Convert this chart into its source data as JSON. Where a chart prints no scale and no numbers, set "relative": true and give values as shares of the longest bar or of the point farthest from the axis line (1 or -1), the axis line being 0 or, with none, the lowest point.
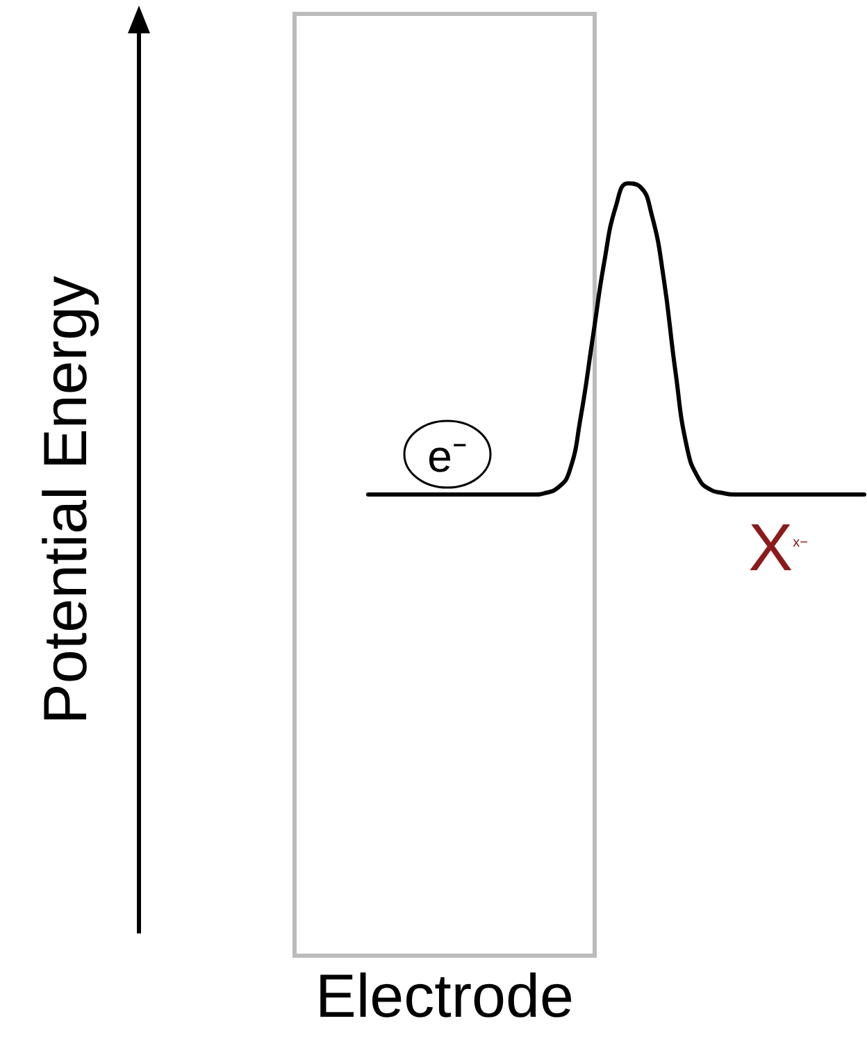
{
  "chart_data": {
    "type": "line",
    "relative": true,
    "ylabel": "Potential Energy",
    "annotations": [
      "e⁻",
      "X$^{x−}$",
      "Electrode"
    ],
    "categories": [
      null,
      null,
      null,
      null,
      null,
      null,
      null,
      null,
      null,
      null,
      null,
      null,
      null,
      null,
      null,
      null,
      null,
      null,
      null,
      null,
      null,
      null,
      null,
      null,
      null,
      null,
      null,
      null,
      null,
      null,
      null,
      null,
      null,
      null,
      null,
      null,
      null,
      null,
      null,
      null,
      null,
      null,
      null
    ],
    "values": [
      0,
      0,
      0,
      0,
      0,
      0,
      0,
      0,
      0,
      0,
      0,
      0,
      0,
      0,
      0,
      0.005,
      0.02,
      0.07,
      0.25,
      0.5,
      0.75,
      0.93,
      1,
      0.99,
      0.9,
      0.7,
      0.4,
      0.15,
      0.05,
      0.015,
      0.005,
      0,
      0,
      0,
      0,
      0,
      0,
      0,
      0,
      0,
      0,
      0,
      0
    ],
    "color": "#000000"
  }
}
